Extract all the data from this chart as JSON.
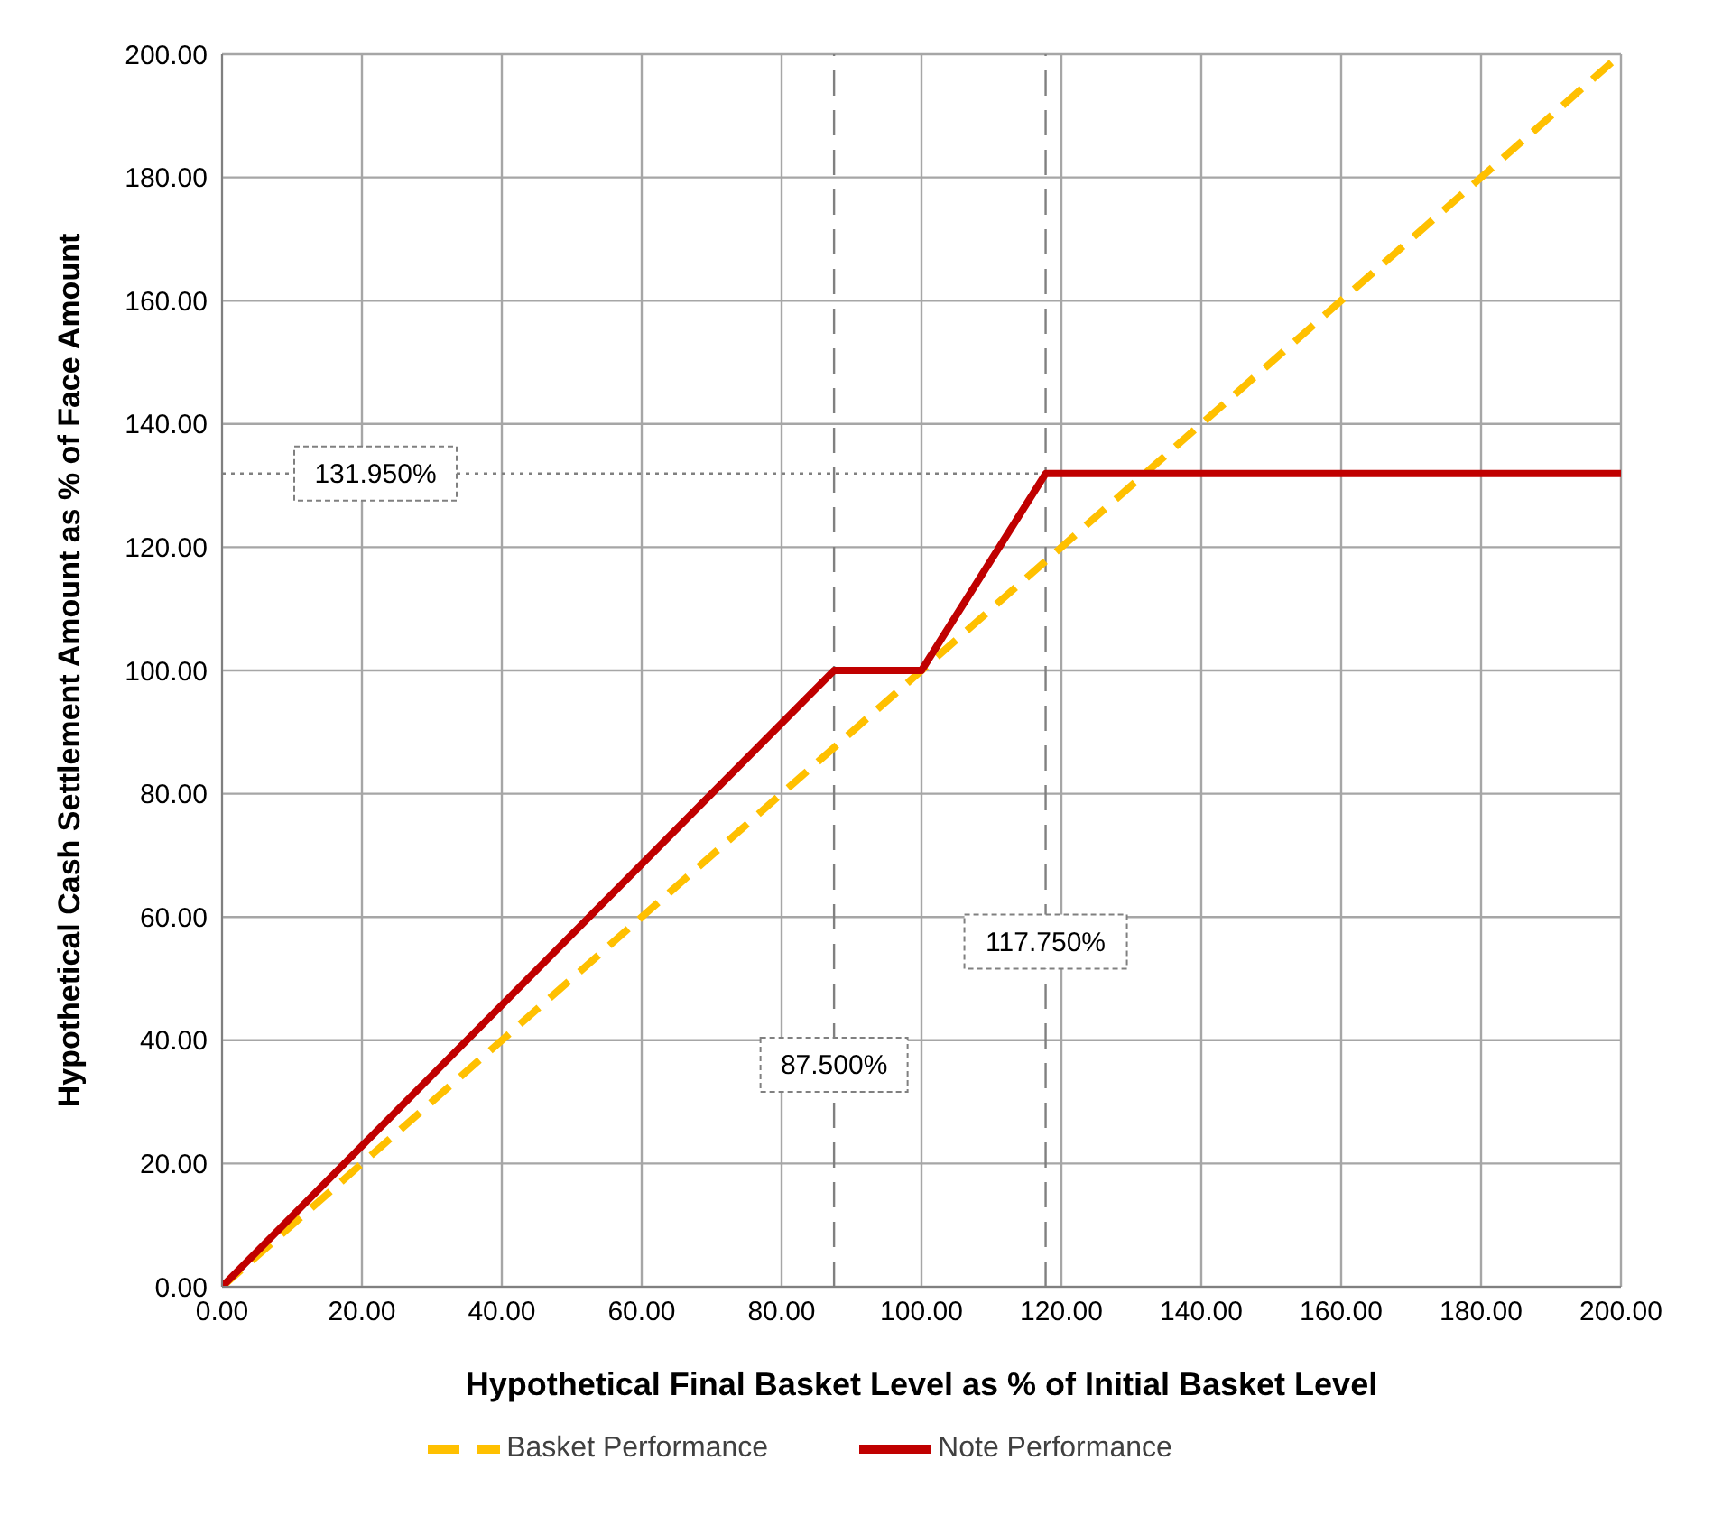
{
  "chart_data": {
    "type": "line",
    "xlabel": "Hypothetical Final Basket Level as % of Initial Basket Level",
    "ylabel": "Hypothetical Cash Settlement Amount as % of Face Amount",
    "xlim": [
      0,
      200
    ],
    "ylim": [
      0,
      200
    ],
    "xticks": [
      {
        "value": 0,
        "label": "0.00"
      },
      {
        "value": 20,
        "label": "20.00"
      },
      {
        "value": 40,
        "label": "40.00"
      },
      {
        "value": 60,
        "label": "60.00"
      },
      {
        "value": 80,
        "label": "80.00"
      },
      {
        "value": 100,
        "label": "100.00"
      },
      {
        "value": 120,
        "label": "120.00"
      },
      {
        "value": 140,
        "label": "140.00"
      },
      {
        "value": 160,
        "label": "160.00"
      },
      {
        "value": 180,
        "label": "180.00"
      },
      {
        "value": 200,
        "label": "200.00"
      }
    ],
    "yticks": [
      {
        "value": 0,
        "label": "0.00"
      },
      {
        "value": 20,
        "label": "20.00"
      },
      {
        "value": 40,
        "label": "40.00"
      },
      {
        "value": 60,
        "label": "60.00"
      },
      {
        "value": 80,
        "label": "80.00"
      },
      {
        "value": 100,
        "label": "100.00"
      },
      {
        "value": 120,
        "label": "120.00"
      },
      {
        "value": 140,
        "label": "140.00"
      },
      {
        "value": 160,
        "label": "160.00"
      },
      {
        "value": 180,
        "label": "180.00"
      },
      {
        "value": 200,
        "label": "200.00"
      }
    ],
    "series": [
      {
        "name": "Basket Performance",
        "color": "#ffc000",
        "line_style": "dashed",
        "x": [
          0,
          200
        ],
        "values": [
          0,
          200
        ]
      },
      {
        "name": "Note Performance",
        "color": "#c00000",
        "line_style": "solid",
        "x": [
          0,
          87.5,
          100,
          117.75,
          200
        ],
        "values": [
          0,
          100,
          100,
          131.95,
          131.95
        ]
      }
    ],
    "ref_lines": [
      {
        "axis": "y",
        "value": 131.95,
        "label": "131.950%",
        "line_style": "dotted",
        "color": "#808080"
      },
      {
        "axis": "x",
        "value": 87.5,
        "label": "87.500%",
        "line_style": "dashed",
        "color": "#808080"
      },
      {
        "axis": "x",
        "value": 117.75,
        "label": "117.750%",
        "line_style": "dashed",
        "color": "#808080"
      }
    ],
    "grid": true,
    "legend": "bottom",
    "marker": "none"
  }
}
